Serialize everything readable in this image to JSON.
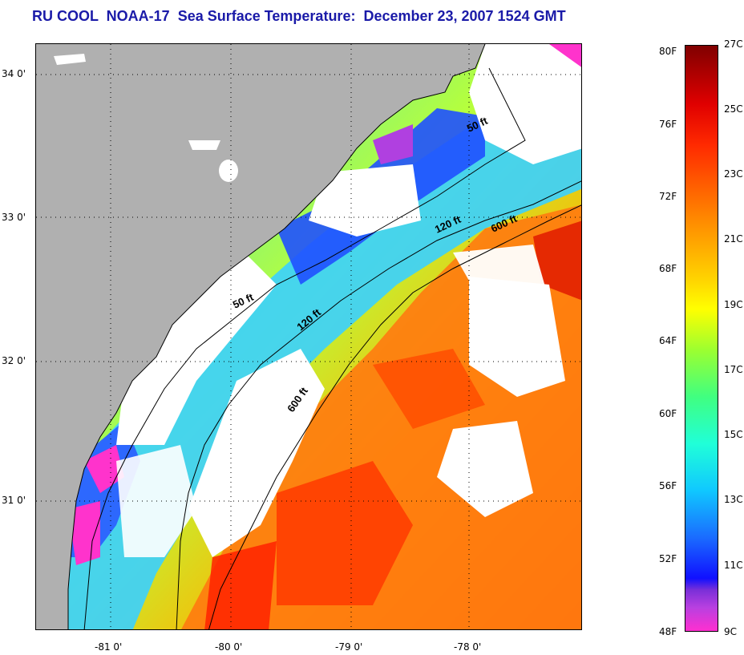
{
  "title": "RU COOL  NOAA-17  Sea Surface Temperature:  December 23, 2007 1524 GMT",
  "map": {
    "lat_labels": [
      "34 0'",
      "33 0'",
      "32 0'",
      "31 0'"
    ],
    "lon_labels": [
      "-81 0'",
      "-80 0'",
      "-79 0'",
      "-78 0'"
    ],
    "isobath_labels": [
      "50 ft",
      "50 ft",
      "120 ft",
      "120 ft",
      "600 ft",
      "600 ft"
    ],
    "colors": {
      "land": "#b0b0b0",
      "cloud": "#ffffff",
      "cold": "#ff33cc",
      "cool": "#1f3cff",
      "mid": "#22d8ff",
      "warm": "#ffe100",
      "hot": "#ff6a00",
      "hottest": "#e01000"
    }
  },
  "colorbar": {
    "fahrenheit": [
      "80F",
      "76F",
      "72F",
      "68F",
      "64F",
      "60F",
      "56F",
      "52F",
      "48F"
    ],
    "celsius": [
      "27C",
      "25C",
      "23C",
      "21C",
      "19C",
      "17C",
      "15C",
      "13C",
      "11C",
      "9C"
    ]
  }
}
